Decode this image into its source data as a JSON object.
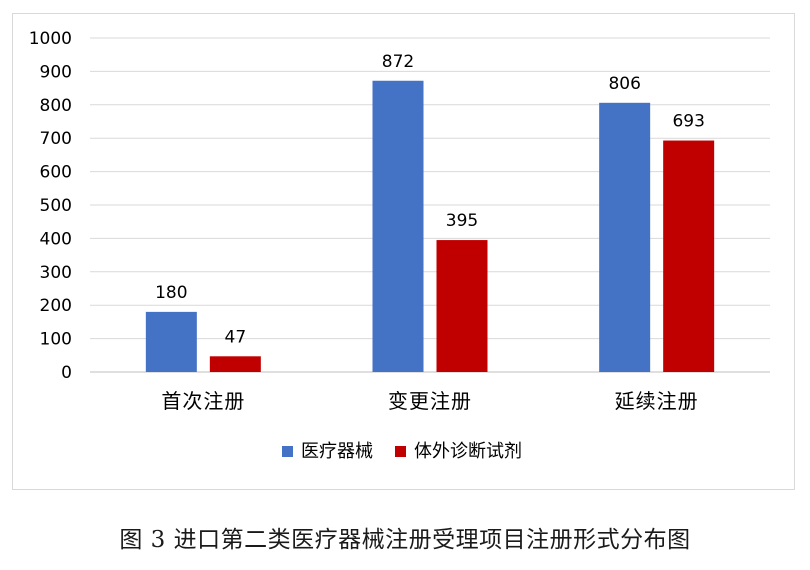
{
  "chart_data": {
    "type": "bar",
    "categories": [
      "首次注册",
      "变更注册",
      "延续注册"
    ],
    "series": [
      {
        "name": "医疗器械",
        "color": "#4472C4",
        "values": [
          180,
          872,
          806
        ]
      },
      {
        "name": "体外诊断试剂",
        "color": "#C00000",
        "values": [
          47,
          395,
          693
        ]
      }
    ],
    "ylim": [
      0,
      1000
    ],
    "yticks": [
      0,
      100,
      200,
      300,
      400,
      500,
      600,
      700,
      800,
      900,
      1000
    ],
    "grid": true,
    "legend": "bottom",
    "data_labels": true
  },
  "caption": "图 3  进口第二类医疗器械注册受理项目注册形式分布图"
}
